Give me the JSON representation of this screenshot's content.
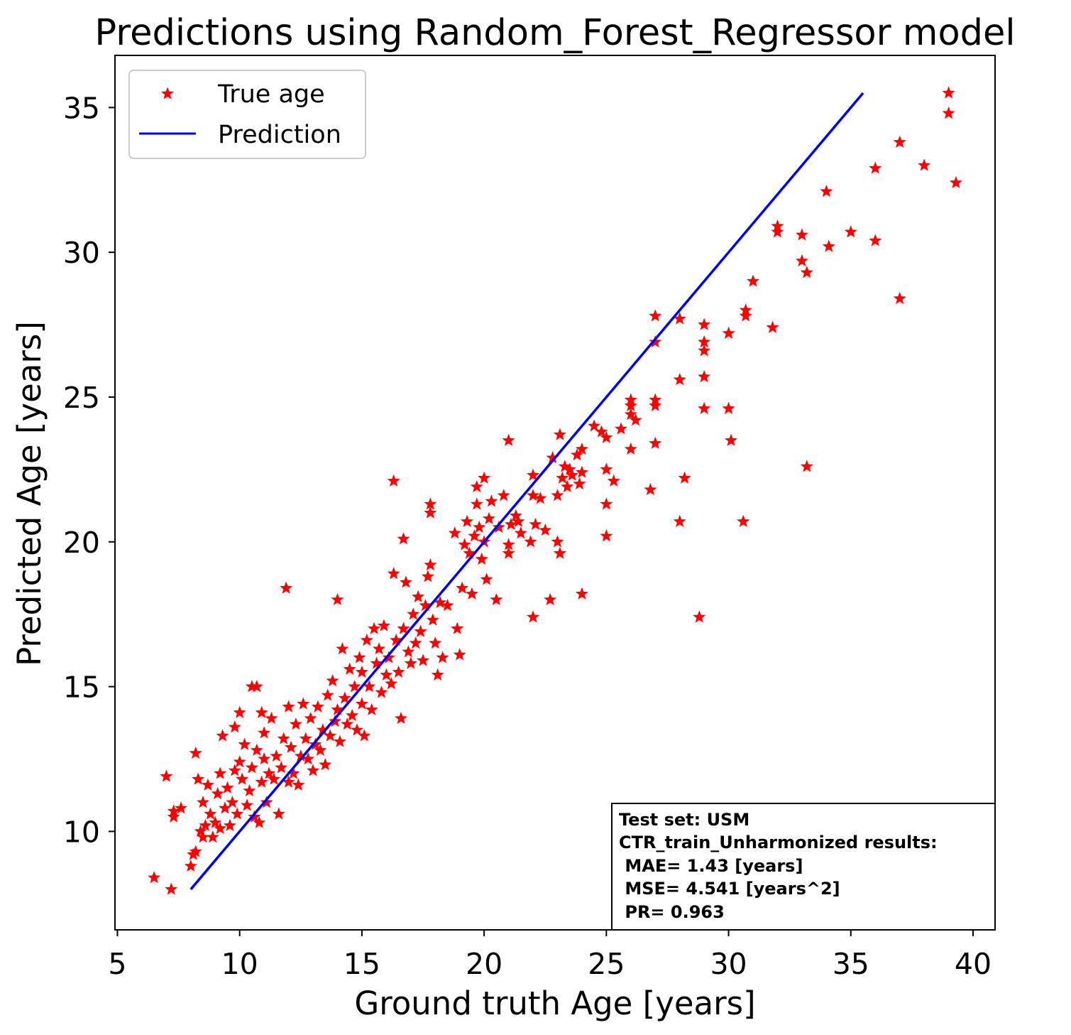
{
  "chart_data": {
    "type": "scatter",
    "title": "Predictions using Random_Forest_Regressor model",
    "xlabel": "Ground truth Age [years]",
    "ylabel": "Predicted Age [years]",
    "xlim": [
      4.9,
      40.9
    ],
    "ylim": [
      6.6,
      36.8
    ],
    "xticks": [
      5,
      10,
      15,
      20,
      25,
      30,
      35,
      40
    ],
    "yticks": [
      10,
      15,
      20,
      25,
      30,
      35
    ],
    "grid": false,
    "legend_position": "upper-left",
    "series": [
      {
        "name": "True age",
        "kind": "scatter",
        "marker": "star",
        "color": "#ff0000",
        "points": [
          [
            6.5,
            8.4
          ],
          [
            7.2,
            8.0
          ],
          [
            7.0,
            11.9
          ],
          [
            7.3,
            10.5
          ],
          [
            7.3,
            10.7
          ],
          [
            7.6,
            10.8
          ],
          [
            8.0,
            8.8
          ],
          [
            8.1,
            9.2
          ],
          [
            8.2,
            9.3
          ],
          [
            8.2,
            12.7
          ],
          [
            8.3,
            11.8
          ],
          [
            8.4,
            10.0
          ],
          [
            8.5,
            9.8
          ],
          [
            8.5,
            11.0
          ],
          [
            8.6,
            10.2
          ],
          [
            8.7,
            11.6
          ],
          [
            8.8,
            10.6
          ],
          [
            8.9,
            9.8
          ],
          [
            9.0,
            10.3
          ],
          [
            9.1,
            11.3
          ],
          [
            9.2,
            10.1
          ],
          [
            9.2,
            12.0
          ],
          [
            9.3,
            13.3
          ],
          [
            9.4,
            10.8
          ],
          [
            9.5,
            11.5
          ],
          [
            9.6,
            10.2
          ],
          [
            9.7,
            11.0
          ],
          [
            9.8,
            12.1
          ],
          [
            9.8,
            13.6
          ],
          [
            9.9,
            10.6
          ],
          [
            10.0,
            14.1
          ],
          [
            10.0,
            12.4
          ],
          [
            10.1,
            11.8
          ],
          [
            10.2,
            13.0
          ],
          [
            10.3,
            10.9
          ],
          [
            10.4,
            11.4
          ],
          [
            10.5,
            12.2
          ],
          [
            10.5,
            15.0
          ],
          [
            10.6,
            10.5
          ],
          [
            10.7,
            12.8
          ],
          [
            10.7,
            15.0
          ],
          [
            10.8,
            10.3
          ],
          [
            10.9,
            11.7
          ],
          [
            10.9,
            14.1
          ],
          [
            11.0,
            13.4
          ],
          [
            11.0,
            12.5
          ],
          [
            11.1,
            11.0
          ],
          [
            11.2,
            12.0
          ],
          [
            11.3,
            13.9
          ],
          [
            11.4,
            11.8
          ],
          [
            11.5,
            12.6
          ],
          [
            11.6,
            10.6
          ],
          [
            11.7,
            12.2
          ],
          [
            11.8,
            13.2
          ],
          [
            11.9,
            18.4
          ],
          [
            12.0,
            11.7
          ],
          [
            12.0,
            14.3
          ],
          [
            12.1,
            12.9
          ],
          [
            12.2,
            12.0
          ],
          [
            12.3,
            13.7
          ],
          [
            12.4,
            11.6
          ],
          [
            12.5,
            12.6
          ],
          [
            12.6,
            14.4
          ],
          [
            12.7,
            13.2
          ],
          [
            12.8,
            12.5
          ],
          [
            12.9,
            13.9
          ],
          [
            13.0,
            12.1
          ],
          [
            13.1,
            13.0
          ],
          [
            13.2,
            14.3
          ],
          [
            13.3,
            12.8
          ],
          [
            13.4,
            13.5
          ],
          [
            13.5,
            12.3
          ],
          [
            13.6,
            14.7
          ],
          [
            13.7,
            13.3
          ],
          [
            13.8,
            15.2
          ],
          [
            13.9,
            13.8
          ],
          [
            14.0,
            18.0
          ],
          [
            14.0,
            14.2
          ],
          [
            14.1,
            13.1
          ],
          [
            14.2,
            16.3
          ],
          [
            14.3,
            14.6
          ],
          [
            14.4,
            13.7
          ],
          [
            14.5,
            15.6
          ],
          [
            14.6,
            14.0
          ],
          [
            14.7,
            15.0
          ],
          [
            14.8,
            13.5
          ],
          [
            14.9,
            16.0
          ],
          [
            15.0,
            14.4
          ],
          [
            15.0,
            15.5
          ],
          [
            15.1,
            13.3
          ],
          [
            15.2,
            16.6
          ],
          [
            15.3,
            15.0
          ],
          [
            15.4,
            14.2
          ],
          [
            15.5,
            17.0
          ],
          [
            15.6,
            15.8
          ],
          [
            15.7,
            16.3
          ],
          [
            15.8,
            14.8
          ],
          [
            15.9,
            17.1
          ],
          [
            16.0,
            15.4
          ],
          [
            16.1,
            16.0
          ],
          [
            16.2,
            15.1
          ],
          [
            16.3,
            18.9
          ],
          [
            16.3,
            22.1
          ],
          [
            16.4,
            16.6
          ],
          [
            16.5,
            15.5
          ],
          [
            16.6,
            13.9
          ],
          [
            16.7,
            20.1
          ],
          [
            16.7,
            17.0
          ],
          [
            16.8,
            18.6
          ],
          [
            16.9,
            16.2
          ],
          [
            17.0,
            15.8
          ],
          [
            17.1,
            17.5
          ],
          [
            17.2,
            16.5
          ],
          [
            17.3,
            18.1
          ],
          [
            17.4,
            16.9
          ],
          [
            17.5,
            15.9
          ],
          [
            17.6,
            17.8
          ],
          [
            17.7,
            18.8
          ],
          [
            17.8,
            19.2
          ],
          [
            17.8,
            21.3
          ],
          [
            17.8,
            21.0
          ],
          [
            17.9,
            17.3
          ],
          [
            18.0,
            16.5
          ],
          [
            18.1,
            15.4
          ],
          [
            18.2,
            17.9
          ],
          [
            18.3,
            16.0
          ],
          [
            18.5,
            17.8
          ],
          [
            18.8,
            20.3
          ],
          [
            18.9,
            17.0
          ],
          [
            19.0,
            16.1
          ],
          [
            19.1,
            18.4
          ],
          [
            19.2,
            19.9
          ],
          [
            19.3,
            20.7
          ],
          [
            19.4,
            19.6
          ],
          [
            19.5,
            18.2
          ],
          [
            19.6,
            20.2
          ],
          [
            19.7,
            21.3
          ],
          [
            19.7,
            21.9
          ],
          [
            19.8,
            20.5
          ],
          [
            19.9,
            19.4
          ],
          [
            20.0,
            20.0
          ],
          [
            20.0,
            22.2
          ],
          [
            20.1,
            18.7
          ],
          [
            20.2,
            20.8
          ],
          [
            20.3,
            21.4
          ],
          [
            20.5,
            18.0
          ],
          [
            20.6,
            20.5
          ],
          [
            20.8,
            21.6
          ],
          [
            21.0,
            23.5
          ],
          [
            21.0,
            19.6
          ],
          [
            21.0,
            19.9
          ],
          [
            21.1,
            20.6
          ],
          [
            21.3,
            20.9
          ],
          [
            21.4,
            20.7
          ],
          [
            21.5,
            20.3
          ],
          [
            21.9,
            20.0
          ],
          [
            22.0,
            22.3
          ],
          [
            22.0,
            21.6
          ],
          [
            22.0,
            17.4
          ],
          [
            22.1,
            20.6
          ],
          [
            22.3,
            21.5
          ],
          [
            22.5,
            20.4
          ],
          [
            22.7,
            18.0
          ],
          [
            22.8,
            22.9
          ],
          [
            23.0,
            21.6
          ],
          [
            23.0,
            20.0
          ],
          [
            23.1,
            19.6
          ],
          [
            23.1,
            23.7
          ],
          [
            23.2,
            22.2
          ],
          [
            23.3,
            22.6
          ],
          [
            23.4,
            21.9
          ],
          [
            23.5,
            22.5
          ],
          [
            23.6,
            22.3
          ],
          [
            23.8,
            23.0
          ],
          [
            23.9,
            22.0
          ],
          [
            24.0,
            23.2
          ],
          [
            24.0,
            22.4
          ],
          [
            24.0,
            18.2
          ],
          [
            24.5,
            24.0
          ],
          [
            24.8,
            23.8
          ],
          [
            25.0,
            23.6
          ],
          [
            25.0,
            22.5
          ],
          [
            25.0,
            21.3
          ],
          [
            25.0,
            20.2
          ],
          [
            25.3,
            22.1
          ],
          [
            25.6,
            23.9
          ],
          [
            26.0,
            24.7
          ],
          [
            26.0,
            24.9
          ],
          [
            26.0,
            24.4
          ],
          [
            26.0,
            23.2
          ],
          [
            26.2,
            24.2
          ],
          [
            26.8,
            21.8
          ],
          [
            27.0,
            27.8
          ],
          [
            27.0,
            26.9
          ],
          [
            27.0,
            24.7
          ],
          [
            27.0,
            24.9
          ],
          [
            27.0,
            23.4
          ],
          [
            28.0,
            27.7
          ],
          [
            28.0,
            25.6
          ],
          [
            28.0,
            20.7
          ],
          [
            28.2,
            22.2
          ],
          [
            28.8,
            17.4
          ],
          [
            29.0,
            27.5
          ],
          [
            29.0,
            26.9
          ],
          [
            29.0,
            26.6
          ],
          [
            29.0,
            25.7
          ],
          [
            29.0,
            24.6
          ],
          [
            30.0,
            27.2
          ],
          [
            30.0,
            24.6
          ],
          [
            30.1,
            23.5
          ],
          [
            30.6,
            20.7
          ],
          [
            30.7,
            27.8
          ],
          [
            30.7,
            28.0
          ],
          [
            31.0,
            29.0
          ],
          [
            31.8,
            27.4
          ],
          [
            32.0,
            30.9
          ],
          [
            32.0,
            30.7
          ],
          [
            33.0,
            30.6
          ],
          [
            33.0,
            29.7
          ],
          [
            33.2,
            29.3
          ],
          [
            33.2,
            22.6
          ],
          [
            34.0,
            32.1
          ],
          [
            34.1,
            30.2
          ],
          [
            35.0,
            30.7
          ],
          [
            36.0,
            32.9
          ],
          [
            36.0,
            30.4
          ],
          [
            37.0,
            33.8
          ],
          [
            37.0,
            28.4
          ],
          [
            38.0,
            33.0
          ],
          [
            39.0,
            35.5
          ],
          [
            39.0,
            34.8
          ],
          [
            39.3,
            32.4
          ]
        ]
      },
      {
        "name": "Prediction",
        "kind": "line",
        "color": "#0000ff",
        "points": [
          [
            8.0,
            8.0
          ],
          [
            35.5,
            35.5
          ]
        ]
      }
    ]
  },
  "stats_box": {
    "lines": [
      "Test set: USM",
      "CTR_train_Unharmonized results:",
      " MAE= 1.43 [years]",
      " MSE= 4.541 [years^2]",
      " PR= 0.963"
    ]
  }
}
